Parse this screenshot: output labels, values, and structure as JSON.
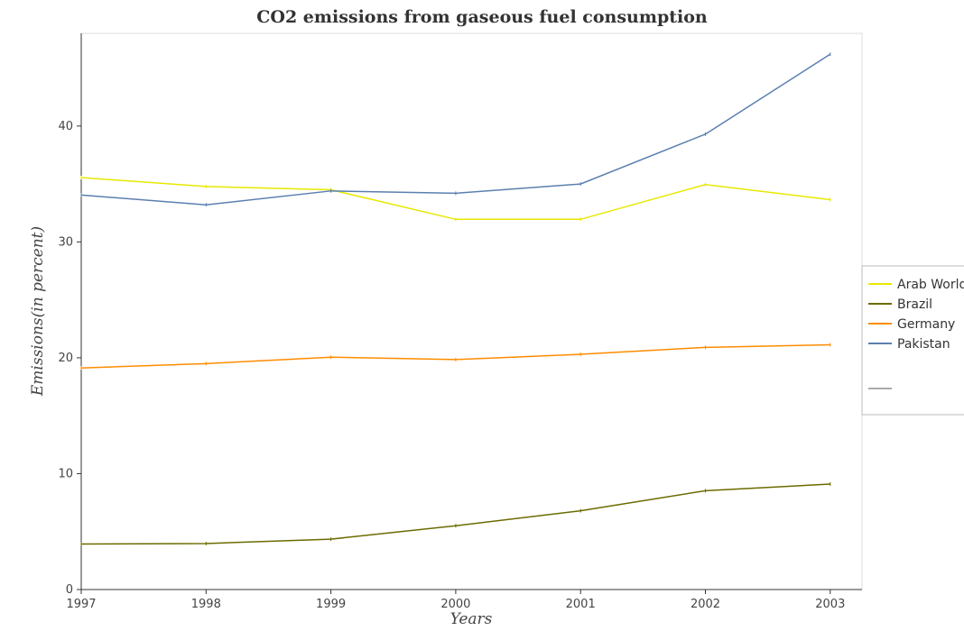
{
  "chart_data": {
    "type": "line",
    "title": "CO2 emissions from gaseous fuel consumption",
    "xlabel": "Years",
    "ylabel": "Emissions(in percent)",
    "categories": [
      "1997",
      "1998",
      "1999",
      "2000",
      "2001",
      "2002",
      "2003"
    ],
    "ylim": [
      0,
      48
    ],
    "yticks": [
      "0",
      "10",
      "20",
      "30",
      "40"
    ],
    "grid": false,
    "legend_position": "right",
    "series": [
      {
        "name": "Arab World",
        "color": "#e8e800",
        "values": [
          35.55,
          34.78,
          34.5,
          31.95,
          31.95,
          34.95,
          33.65
        ]
      },
      {
        "name": "Brazil",
        "color": "#6b6b00",
        "values": [
          3.93,
          3.97,
          4.35,
          5.5,
          6.8,
          8.53,
          9.1
        ]
      },
      {
        "name": "Germany",
        "color": "#ff8c00",
        "values": [
          19.12,
          19.5,
          20.05,
          19.85,
          20.3,
          20.9,
          21.12
        ]
      },
      {
        "name": "Pakistan",
        "color": "#5b7fb0",
        "values": [
          34.05,
          33.2,
          34.4,
          34.2,
          35.0,
          39.3,
          46.2
        ]
      }
    ]
  }
}
